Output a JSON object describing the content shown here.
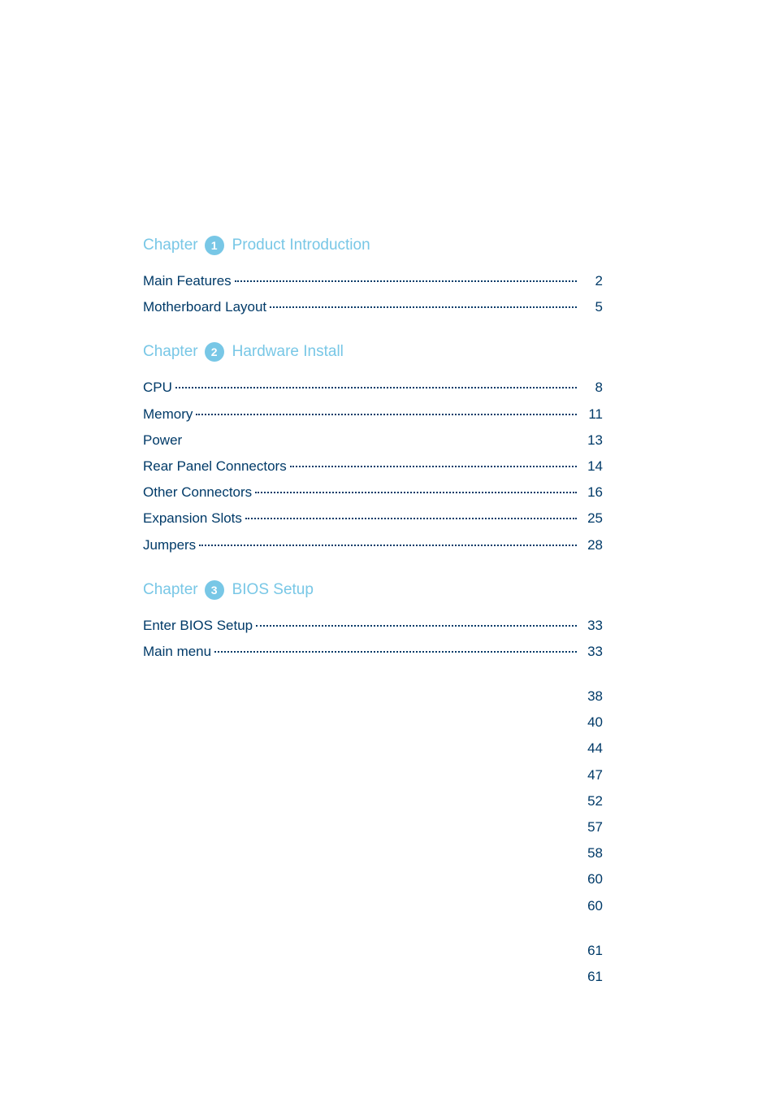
{
  "colors": {
    "text_primary": "#003a68",
    "accent": "#78c7e6",
    "badge_text": "#ffffff",
    "background": "#ffffff"
  },
  "typography": {
    "body_fontsize": 17,
    "header_fontsize": 19,
    "badge_fontsize": 14
  },
  "chapters": [
    {
      "label": "Chapter",
      "number": "1",
      "title": "Product Introduction",
      "entries": [
        {
          "label": "Main Features",
          "page": "2",
          "dotted": true
        },
        {
          "label": "Motherboard Layout",
          "page": "5",
          "dotted": true
        }
      ]
    },
    {
      "label": "Chapter",
      "number": "2",
      "title": "Hardware Install",
      "entries": [
        {
          "label": "CPU",
          "page": "8",
          "dotted": true
        },
        {
          "label": "Memory",
          "page": "11",
          "dotted": true
        },
        {
          "label": "Power",
          "page": "13",
          "dotted": false
        },
        {
          "label": "Rear Panel Connectors",
          "page": "14",
          "dotted": true
        },
        {
          "label": "Other Connectors",
          "page": "16",
          "dotted": true
        },
        {
          "label": "Expansion Slots",
          "page": "25",
          "dotted": true
        },
        {
          "label": "Jumpers",
          "page": "28",
          "dotted": true
        }
      ]
    },
    {
      "label": "Chapter",
      "number": "3",
      "title": "BIOS Setup",
      "entries": [
        {
          "label": "Enter BIOS Setup",
          "page": "33",
          "dotted": true
        },
        {
          "label": "Main menu",
          "page": "33",
          "dotted": true
        }
      ],
      "subentries": [
        {
          "label": "",
          "page": "38"
        },
        {
          "label": "",
          "page": "40"
        },
        {
          "label": "",
          "page": "44"
        },
        {
          "label": "",
          "page": "47"
        },
        {
          "label": "",
          "page": "52"
        },
        {
          "label": "",
          "page": "57"
        },
        {
          "label": "",
          "page": "58"
        },
        {
          "label": "",
          "page": "60"
        },
        {
          "label": "",
          "page": "60"
        }
      ],
      "subentries2": [
        {
          "label": "",
          "page": "61"
        },
        {
          "label": "",
          "page": "61"
        }
      ]
    }
  ]
}
